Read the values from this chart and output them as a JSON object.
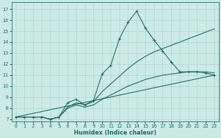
{
  "xlabel": "Humidex (Indice chaleur)",
  "bg_color": "#cceae4",
  "line_color": "#1a6b5a",
  "grid_color": "#aad4cc",
  "xlim": [
    -0.5,
    23.5
  ],
  "ylim": [
    6.8,
    17.6
  ],
  "yticks": [
    7,
    8,
    9,
    10,
    11,
    12,
    13,
    14,
    15,
    16,
    17
  ],
  "xticks": [
    0,
    1,
    2,
    3,
    4,
    5,
    6,
    7,
    8,
    9,
    10,
    11,
    12,
    13,
    14,
    15,
    16,
    17,
    18,
    19,
    20,
    21,
    22,
    23
  ],
  "line1_x": [
    0,
    1,
    2,
    3,
    4,
    5,
    6,
    7,
    8,
    9,
    10,
    11,
    12,
    13,
    14,
    15,
    16,
    17,
    18,
    19,
    20,
    21,
    22,
    23
  ],
  "line1_y": [
    7.2,
    7.2,
    7.2,
    7.2,
    7.0,
    7.2,
    8.5,
    8.8,
    8.3,
    8.7,
    11.1,
    11.9,
    14.3,
    15.8,
    16.8,
    15.3,
    14.2,
    13.2,
    12.2,
    11.3,
    11.3,
    11.3,
    11.2,
    11.0
  ],
  "line2_x": [
    0,
    1,
    2,
    3,
    4,
    5,
    6,
    7,
    8,
    9,
    10,
    11,
    12,
    13,
    14,
    15,
    16,
    17,
    18,
    19,
    20,
    21,
    22,
    23
  ],
  "line2_y": [
    7.2,
    7.2,
    7.2,
    7.2,
    7.0,
    7.2,
    8.1,
    8.5,
    8.3,
    8.6,
    9.5,
    10.2,
    10.9,
    11.6,
    12.2,
    12.7,
    13.1,
    13.4,
    13.7,
    14.0,
    14.3,
    14.6,
    14.9,
    15.2
  ],
  "line3_x": [
    0,
    1,
    2,
    3,
    4,
    5,
    6,
    7,
    8,
    9,
    10,
    11,
    12,
    13,
    14,
    15,
    16,
    17,
    18,
    19,
    20,
    21,
    22,
    23
  ],
  "line3_y": [
    7.2,
    7.2,
    7.2,
    7.2,
    7.0,
    7.2,
    8.0,
    8.3,
    8.1,
    8.3,
    8.8,
    9.2,
    9.6,
    10.0,
    10.3,
    10.6,
    10.8,
    11.0,
    11.1,
    11.2,
    11.3,
    11.3,
    11.3,
    11.2
  ],
  "line4_x": [
    0,
    23
  ],
  "line4_y": [
    7.2,
    11.0
  ]
}
